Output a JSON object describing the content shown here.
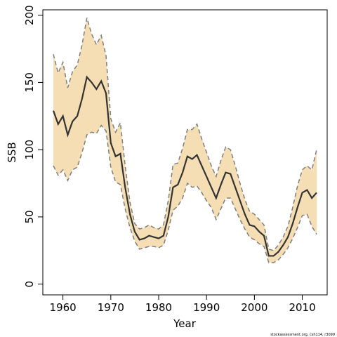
{
  "chart_data": {
    "type": "line",
    "x_label": "Year",
    "y_label": "SSB",
    "footer": "stockassessment.org, csh114, r3099",
    "x": [
      1958,
      1959,
      1960,
      1961,
      1962,
      1963,
      1964,
      1965,
      1966,
      1967,
      1968,
      1969,
      1970,
      1971,
      1972,
      1973,
      1974,
      1975,
      1976,
      1977,
      1978,
      1979,
      1980,
      1981,
      1982,
      1983,
      1984,
      1985,
      1986,
      1987,
      1988,
      1989,
      1990,
      1991,
      1992,
      1993,
      1994,
      1995,
      1996,
      1997,
      1998,
      1999,
      2000,
      2001,
      2002,
      2003,
      2004,
      2005,
      2006,
      2007,
      2008,
      2009,
      2010,
      2011,
      2012,
      2013
    ],
    "values": [
      129,
      119,
      125,
      111,
      121,
      125,
      138,
      154,
      150,
      145,
      151,
      142,
      105,
      95,
      97,
      72,
      52,
      39,
      33,
      34,
      36,
      35,
      34,
      36,
      50,
      72,
      74,
      83,
      95,
      93,
      96,
      88,
      80,
      72,
      64,
      74,
      83,
      82,
      72,
      62,
      52,
      44,
      43,
      39,
      36,
      21,
      21,
      24,
      29,
      35,
      45,
      57,
      68,
      70,
      64,
      68
    ],
    "upper": [
      171,
      157,
      165,
      146,
      158,
      163,
      178,
      198,
      186,
      178,
      185,
      170,
      123,
      113,
      120,
      88,
      61,
      45,
      41,
      42,
      44,
      42,
      41,
      44,
      62,
      89,
      90,
      101,
      115,
      115,
      119,
      108,
      98,
      88,
      80,
      92,
      102,
      100,
      88,
      75,
      63,
      54,
      52,
      48,
      44,
      26,
      25,
      29,
      35,
      43,
      57,
      73,
      85,
      88,
      85,
      100
    ],
    "lower": [
      88,
      81,
      85,
      77,
      85,
      87,
      98,
      111,
      113,
      112,
      118,
      114,
      87,
      76,
      74,
      56,
      42,
      32,
      26,
      27,
      28,
      28,
      27,
      29,
      40,
      55,
      58,
      64,
      75,
      72,
      73,
      68,
      62,
      57,
      48,
      56,
      64,
      64,
      56,
      48,
      41,
      35,
      33,
      30,
      28,
      16,
      16,
      18,
      22,
      27,
      34,
      42,
      51,
      52,
      43,
      37
    ],
    "line_color": "#333333",
    "band_color": "#f5deb3",
    "bound_color": "#7f7f7f",
    "xlim": [
      1955.8,
      2015.2
    ],
    "ylim": [
      -8,
      204
    ],
    "xticks": [
      1960,
      1970,
      1980,
      1990,
      2000,
      2010
    ],
    "yticks": [
      0,
      50,
      100,
      150,
      200
    ]
  }
}
